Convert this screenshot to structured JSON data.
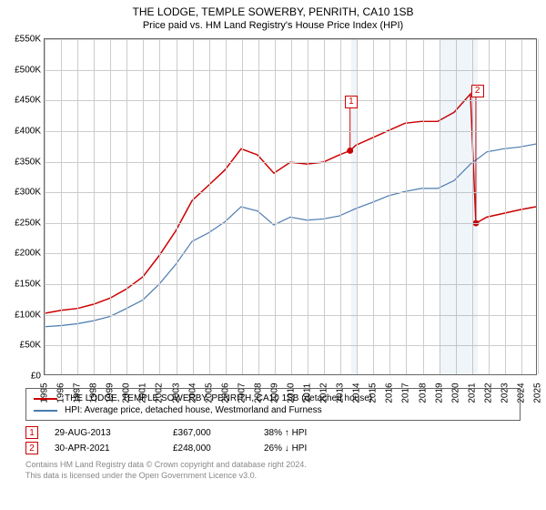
{
  "title": "THE LODGE, TEMPLE SOWERBY, PENRITH, CA10 1SB",
  "subtitle": "Price paid vs. HM Land Registry's House Price Index (HPI)",
  "chart": {
    "type": "line",
    "background_color": "#ffffff",
    "grid_color": "#cccccc",
    "border_color": "#666666",
    "shade_color": "rgba(70,130,180,0.08)",
    "ylim": [
      0,
      550000
    ],
    "ytick_step": 50000,
    "yticks": [
      "£0",
      "£50K",
      "£100K",
      "£150K",
      "£200K",
      "£250K",
      "£300K",
      "£350K",
      "£400K",
      "£450K",
      "£500K",
      "£550K"
    ],
    "x_years": [
      1995,
      1996,
      1997,
      1998,
      1999,
      2000,
      2001,
      2002,
      2003,
      2004,
      2005,
      2006,
      2007,
      2008,
      2009,
      2010,
      2011,
      2012,
      2013,
      2014,
      2015,
      2016,
      2017,
      2018,
      2019,
      2020,
      2021,
      2022,
      2023,
      2024,
      2025
    ],
    "shade_ranges": [
      [
        2013.65,
        2014.0
      ],
      [
        2019.0,
        2021.33
      ]
    ],
    "series": [
      {
        "name": "property",
        "label": "THE LODGE, TEMPLE SOWERBY, PENRITH, CA10 1SB (detached house)",
        "color": "#cc0000",
        "line_width": 1.5,
        "data": [
          [
            1995,
            100000
          ],
          [
            1996,
            105000
          ],
          [
            1997,
            108000
          ],
          [
            1998,
            115000
          ],
          [
            1999,
            125000
          ],
          [
            2000,
            140000
          ],
          [
            2001,
            160000
          ],
          [
            2002,
            195000
          ],
          [
            2003,
            235000
          ],
          [
            2004,
            285000
          ],
          [
            2005,
            310000
          ],
          [
            2006,
            335000
          ],
          [
            2007,
            370000
          ],
          [
            2008,
            360000
          ],
          [
            2009,
            330000
          ],
          [
            2010,
            348000
          ],
          [
            2011,
            345000
          ],
          [
            2012,
            348000
          ],
          [
            2013,
            360000
          ],
          [
            2013.65,
            367000
          ],
          [
            2014,
            376000
          ],
          [
            2015,
            388000
          ],
          [
            2016,
            400000
          ],
          [
            2017,
            412000
          ],
          [
            2018,
            415000
          ],
          [
            2019,
            415000
          ],
          [
            2020,
            430000
          ],
          [
            2021,
            460000
          ],
          [
            2021.33,
            248000
          ],
          [
            2022,
            258000
          ],
          [
            2023,
            264000
          ],
          [
            2024,
            270000
          ],
          [
            2025,
            275000
          ]
        ]
      },
      {
        "name": "hpi",
        "label": "HPI: Average price, detached house, Westmorland and Furness",
        "color": "#4a7ab0",
        "line_width": 1.2,
        "data": [
          [
            1995,
            78000
          ],
          [
            1996,
            80000
          ],
          [
            1997,
            83000
          ],
          [
            1998,
            88000
          ],
          [
            1999,
            95000
          ],
          [
            2000,
            108000
          ],
          [
            2001,
            122000
          ],
          [
            2002,
            148000
          ],
          [
            2003,
            180000
          ],
          [
            2004,
            218000
          ],
          [
            2005,
            232000
          ],
          [
            2006,
            250000
          ],
          [
            2007,
            275000
          ],
          [
            2008,
            268000
          ],
          [
            2009,
            245000
          ],
          [
            2010,
            258000
          ],
          [
            2011,
            253000
          ],
          [
            2012,
            255000
          ],
          [
            2013,
            260000
          ],
          [
            2014,
            272000
          ],
          [
            2015,
            282000
          ],
          [
            2016,
            293000
          ],
          [
            2017,
            300000
          ],
          [
            2018,
            305000
          ],
          [
            2019,
            305000
          ],
          [
            2020,
            318000
          ],
          [
            2021,
            345000
          ],
          [
            2022,
            365000
          ],
          [
            2023,
            370000
          ],
          [
            2024,
            373000
          ],
          [
            2025,
            378000
          ]
        ]
      }
    ],
    "markers": [
      {
        "num": "1",
        "x": 2013.65,
        "y_box": 448000,
        "y_dot": 367000,
        "dot_color": "#cc0000"
      },
      {
        "num": "2",
        "x": 2021.33,
        "y_box": 465000,
        "y_dot": 248000,
        "dot_color": "#cc0000"
      }
    ]
  },
  "sales": [
    {
      "num": "1",
      "date": "29-AUG-2013",
      "price": "£367,000",
      "delta": "38% ↑ HPI"
    },
    {
      "num": "2",
      "date": "30-APR-2021",
      "price": "£248,000",
      "delta": "26% ↓ HPI"
    }
  ],
  "attribution": {
    "line1": "Contains HM Land Registry data © Crown copyright and database right 2024.",
    "line2": "This data is licensed under the Open Government Licence v3.0."
  }
}
